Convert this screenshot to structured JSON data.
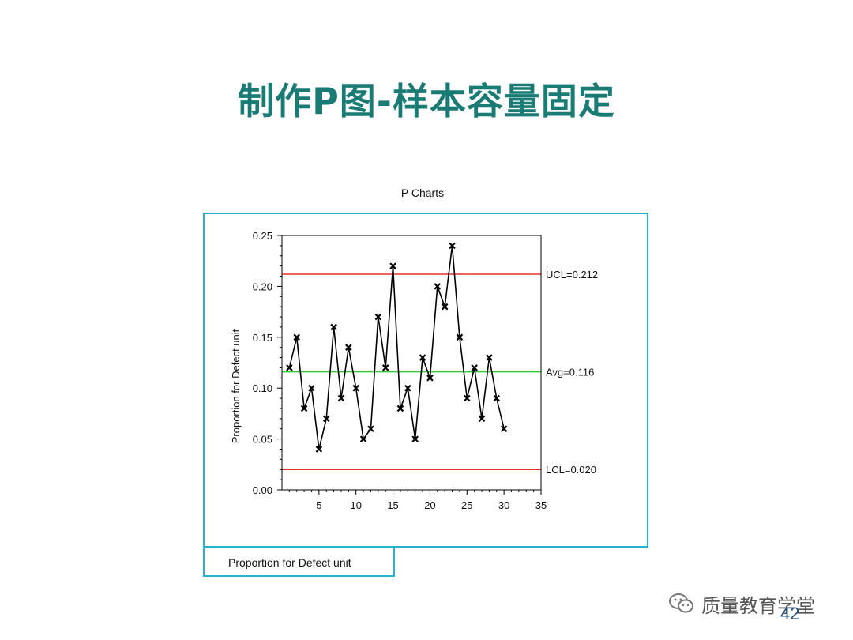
{
  "slide": {
    "title": "制作P图-样本容量固定",
    "page_number": "42",
    "watermark_text": "质量教育学堂",
    "watermark_icon": "wechat-icon"
  },
  "chart_data": {
    "type": "line",
    "title": "P Charts",
    "xlabel": "",
    "ylabel": "Proportion for Defect unit",
    "legend": "Proportion for Defect unit",
    "legend_placement": "bottom-left",
    "grid": false,
    "xlim": [
      0,
      35
    ],
    "ylim": [
      0,
      0.25
    ],
    "xticks": [
      "5",
      "10",
      "15",
      "20",
      "25",
      "30",
      "35"
    ],
    "yticks": [
      "0.00",
      "0.05",
      "0.10",
      "0.15",
      "0.20",
      "0.25"
    ],
    "series": [
      {
        "name": "Proportion for Defect unit",
        "marker": "x",
        "color": "#000000",
        "x": [
          1,
          2,
          3,
          4,
          5,
          6,
          7,
          8,
          9,
          10,
          11,
          12,
          13,
          14,
          15,
          16,
          17,
          18,
          19,
          20,
          21,
          22,
          23,
          24,
          25,
          26,
          27,
          28,
          29,
          30
        ],
        "values": [
          0.12,
          0.15,
          0.08,
          0.1,
          0.04,
          0.07,
          0.16,
          0.09,
          0.14,
          0.1,
          0.05,
          0.06,
          0.17,
          0.12,
          0.22,
          0.08,
          0.1,
          0.05,
          0.13,
          0.11,
          0.2,
          0.18,
          0.24,
          0.15,
          0.09,
          0.12,
          0.07,
          0.13,
          0.09,
          0.06
        ]
      }
    ],
    "control_lines": [
      {
        "label": "UCL=0.212",
        "value": 0.212,
        "color": "#e8302a"
      },
      {
        "label": "Avg=0.116",
        "value": 0.116,
        "color": "#33cc33"
      },
      {
        "label": "LCL=0.020",
        "value": 0.02,
        "color": "#e8302a"
      }
    ]
  }
}
